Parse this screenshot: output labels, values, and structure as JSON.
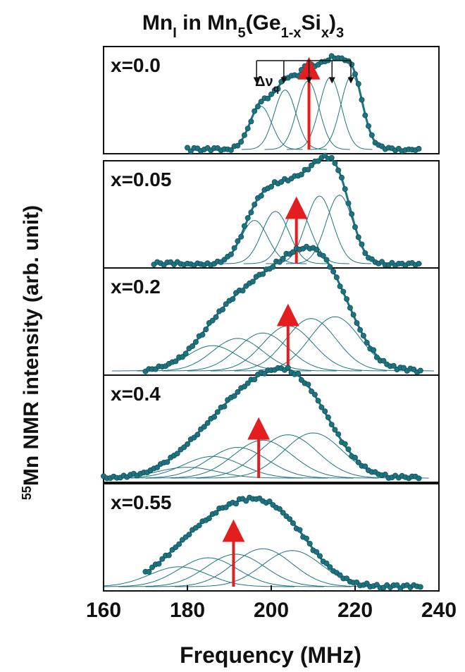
{
  "chart_data": {
    "type": "line",
    "title": {
      "parts": [
        {
          "text": "Mn",
          "style": "normal"
        },
        {
          "text": "I",
          "style": "sub"
        },
        {
          "text": " in Mn",
          "style": "normal"
        },
        {
          "text": "5",
          "style": "sub"
        },
        {
          "text": "(Ge",
          "style": "normal"
        },
        {
          "text": "1-x",
          "style": "sub"
        },
        {
          "text": "Si",
          "style": "normal"
        },
        {
          "text": "x",
          "style": "sub"
        },
        {
          "text": ")",
          "style": "normal"
        },
        {
          "text": "3",
          "style": "sub"
        }
      ]
    },
    "xlabel": "Frequency (MHz)",
    "ylabel": {
      "sup": "55",
      "text": "Mn NMR intensity (arb. unit)"
    },
    "xlim": [
      160,
      240
    ],
    "xticks": [
      160,
      180,
      200,
      220,
      240
    ],
    "colors": {
      "data": "#1d7480",
      "fit": "#1d7480",
      "arrow": "#e41e1e",
      "frame": "#111111"
    },
    "annotation": {
      "text": "Δν",
      "sub": "q"
    },
    "panels": [
      {
        "label": "x=0.0",
        "xrange": [
          180,
          236
        ],
        "arrow_x": 209,
        "arrow_level": 0.9,
        "quadrupole_lines": [
          196.5,
          203,
          209,
          214.5,
          219
        ],
        "components": [
          {
            "center": 197.5,
            "width": 2.6,
            "amp": 0.48
          },
          {
            "center": 203.3,
            "width": 2.6,
            "amp": 0.66
          },
          {
            "center": 208.8,
            "width": 2.6,
            "amp": 0.76
          },
          {
            "center": 214.1,
            "width": 2.6,
            "amp": 0.8
          },
          {
            "center": 219.2,
            "width": 2.6,
            "amp": 0.82
          }
        ]
      },
      {
        "label": "x=0.05",
        "xrange": [
          172,
          236
        ],
        "arrow_x": 206,
        "arrow_level": 0.62,
        "components": [
          {
            "center": 196,
            "width": 3.2,
            "amp": 0.48
          },
          {
            "center": 201,
            "width": 3.2,
            "amp": 0.58
          },
          {
            "center": 206.2,
            "width": 3.2,
            "amp": 0.62
          },
          {
            "center": 211.5,
            "width": 3.2,
            "amp": 0.75
          },
          {
            "center": 216.3,
            "width": 3.2,
            "amp": 0.76
          }
        ]
      },
      {
        "label": "x=0.2",
        "xrange": [
          170,
          236
        ],
        "arrow_x": 204,
        "arrow_level": 0.62,
        "components": [
          {
            "center": 186,
            "width": 6,
            "amp": 0.28
          },
          {
            "center": 192,
            "width": 6,
            "amp": 0.36
          },
          {
            "center": 198,
            "width": 6,
            "amp": 0.42
          },
          {
            "center": 204,
            "width": 6,
            "amp": 0.5
          },
          {
            "center": 209.5,
            "width": 6,
            "amp": 0.58
          },
          {
            "center": 215.2,
            "width": 6,
            "amp": 0.6
          }
        ]
      },
      {
        "label": "x=0.4",
        "xrange": [
          160,
          236
        ],
        "arrow_x": 197,
        "arrow_level": 0.55,
        "components": [
          {
            "center": 180,
            "width": 7,
            "amp": 0.12
          },
          {
            "center": 186,
            "width": 7,
            "amp": 0.24
          },
          {
            "center": 192,
            "width": 7,
            "amp": 0.34
          },
          {
            "center": 198,
            "width": 7,
            "amp": 0.42
          },
          {
            "center": 204,
            "width": 7,
            "amp": 0.48
          },
          {
            "center": 210,
            "width": 7,
            "amp": 0.5
          }
        ]
      },
      {
        "label": "x=0.55",
        "xrange": [
          170,
          236
        ],
        "arrow_x": 191,
        "arrow_level": 0.62,
        "components": [
          {
            "center": 178,
            "width": 7,
            "amp": 0.22
          },
          {
            "center": 185,
            "width": 7,
            "amp": 0.32
          },
          {
            "center": 191.5,
            "width": 7,
            "amp": 0.36
          },
          {
            "center": 198,
            "width": 7,
            "amp": 0.42
          },
          {
            "center": 205,
            "width": 7,
            "amp": 0.4
          }
        ]
      }
    ]
  }
}
